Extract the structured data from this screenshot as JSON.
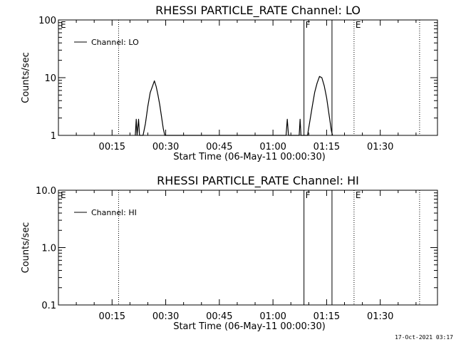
{
  "footer": {
    "timestamp": "17-Oct-2021 03:17"
  },
  "chart_data": [
    {
      "type": "line",
      "title": "RHESSI PARTICLE_RATE Channel: LO",
      "xlabel": "Start Time (06-May-11 00:00:30)",
      "ylabel": "Counts/sec",
      "yscale": "log",
      "ylim": [
        1,
        100
      ],
      "yticks": [
        {
          "value": 1,
          "label": "1"
        },
        {
          "value": 10,
          "label": "10"
        },
        {
          "value": 100,
          "label": "100"
        }
      ],
      "xlim": [
        0,
        6360
      ],
      "xticks": [
        {
          "value": 900,
          "label": "00:15"
        },
        {
          "value": 1800,
          "label": "00:30"
        },
        {
          "value": 2700,
          "label": "00:45"
        },
        {
          "value": 3600,
          "label": "01:00"
        },
        {
          "value": 4500,
          "label": "01:15"
        },
        {
          "value": 5400,
          "label": "01:30"
        }
      ],
      "grid": false,
      "legend_position": "top-left",
      "series": [
        {
          "name": "Channel: LO",
          "color": "#000000",
          "points": [
            [
              1290,
              1
            ],
            [
              1305,
              1.9
            ],
            [
              1320,
              1
            ],
            [
              1345,
              1.9
            ],
            [
              1360,
              1
            ],
            [
              1420,
              1
            ],
            [
              1460,
              1.6
            ],
            [
              1500,
              3.2
            ],
            [
              1540,
              5.5
            ],
            [
              1580,
              7.2
            ],
            [
              1610,
              8.8
            ],
            [
              1640,
              7.0
            ],
            [
              1670,
              5.0
            ],
            [
              1700,
              3.4
            ],
            [
              1730,
              2.1
            ],
            [
              1760,
              1.3
            ],
            [
              1785,
              1
            ],
            [
              3820,
              1
            ],
            [
              3840,
              1.9
            ],
            [
              3860,
              1
            ],
            [
              4040,
              1
            ],
            [
              4055,
              1.9
            ],
            [
              4070,
              1
            ],
            [
              4180,
              1
            ],
            [
              4220,
              1.8
            ],
            [
              4260,
              3.2
            ],
            [
              4300,
              5.6
            ],
            [
              4340,
              8.0
            ],
            [
              4380,
              10.5
            ],
            [
              4420,
              10.0
            ],
            [
              4460,
              7.2
            ],
            [
              4500,
              4.5
            ],
            [
              4540,
              2.3
            ],
            [
              4580,
              1.2
            ],
            [
              4600,
              1
            ]
          ]
        }
      ],
      "markers": [
        {
          "time": 1010,
          "style": "dotted",
          "label": ""
        },
        {
          "time": 4120,
          "style": "solid",
          "label": "F"
        },
        {
          "time": 4590,
          "style": "solid",
          "label": ""
        },
        {
          "time": 4960,
          "style": "dotted",
          "label": "E"
        },
        {
          "time": 6060,
          "style": "dotted",
          "label": ""
        },
        {
          "time": 0,
          "style": "none",
          "label": "E"
        }
      ]
    },
    {
      "type": "line",
      "title": "RHESSI PARTICLE_RATE Channel: HI",
      "xlabel": "Start Time (06-May-11 00:00:30)",
      "ylabel": "Counts/sec",
      "yscale": "log",
      "ylim": [
        0.1,
        10
      ],
      "yticks": [
        {
          "value": 0.1,
          "label": "0.1"
        },
        {
          "value": 1,
          "label": "1.0"
        },
        {
          "value": 10,
          "label": "10.0"
        }
      ],
      "xlim": [
        0,
        6360
      ],
      "xticks": [
        {
          "value": 900,
          "label": "00:15"
        },
        {
          "value": 1800,
          "label": "00:30"
        },
        {
          "value": 2700,
          "label": "00:45"
        },
        {
          "value": 3600,
          "label": "01:00"
        },
        {
          "value": 4500,
          "label": "01:15"
        },
        {
          "value": 5400,
          "label": "01:30"
        }
      ],
      "grid": false,
      "legend_position": "top-left",
      "series": [
        {
          "name": "Channel: HI",
          "color": "#000000",
          "points": []
        }
      ],
      "markers": [
        {
          "time": 1010,
          "style": "dotted",
          "label": ""
        },
        {
          "time": 4120,
          "style": "solid",
          "label": "F"
        },
        {
          "time": 4590,
          "style": "solid",
          "label": ""
        },
        {
          "time": 4960,
          "style": "dotted",
          "label": "E"
        },
        {
          "time": 6060,
          "style": "dotted",
          "label": ""
        },
        {
          "time": 0,
          "style": "none",
          "label": "E"
        }
      ]
    }
  ]
}
